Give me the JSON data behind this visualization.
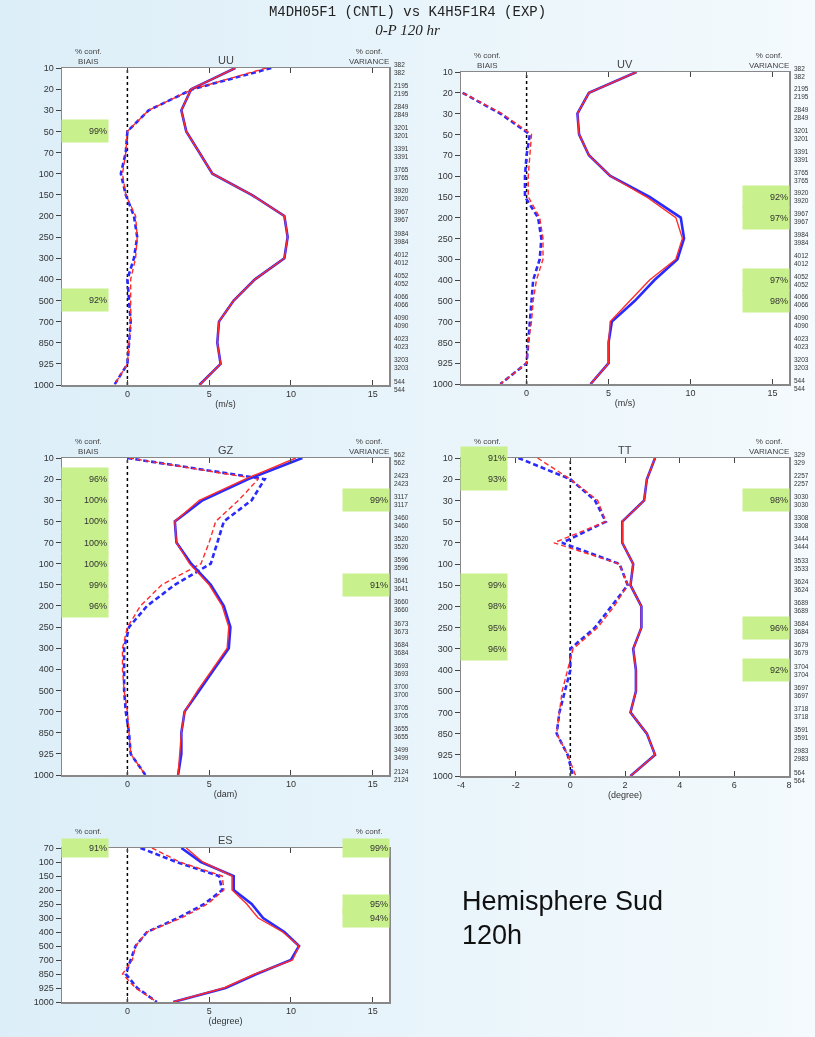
{
  "chart_data": [
    {
      "type": "other",
      "title": "M4DH05F1 (CNTL) vs K4H5F1R4 (EXP)",
      "subtitle": "0-P 120 hr",
      "annotations": [
        "Hemisphere Sud\n120h"
      ]
    },
    {
      "type": "line",
      "orientation": "horizontal",
      "title": "UU",
      "xlabel": "(m/s)",
      "categories": [
        "10",
        "20",
        "30",
        "50",
        "70",
        "100",
        "150",
        "200",
        "250",
        "300",
        "400",
        "500",
        "700",
        "850",
        "925",
        "1000"
      ],
      "y2_categories": [
        "382\n382",
        "2195\n2195",
        "2849\n2849",
        "3201\n3201",
        "3391\n3391",
        "3765\n3765",
        "3920\n3920",
        "3967\n3967",
        "3984\n3984",
        "4012\n4012",
        "4052\n4052",
        "4066\n4066",
        "4090\n4090",
        "4023\n4023",
        "3203\n3203",
        "544\n544"
      ],
      "xlim": [
        -4,
        16
      ],
      "xticks": [
        0,
        5,
        10,
        15
      ],
      "grid": false,
      "series": [
        {
          "color": "#2a2aff",
          "line_style": "dashed",
          "values": [
            8.8,
            4.0,
            1.3,
            0.0,
            -0.1,
            -0.4,
            -0.1,
            0.4,
            0.6,
            0.4,
            0.0,
            0.1,
            0.2,
            0.1,
            0.0,
            -0.8
          ]
        },
        {
          "color": "#ff2a2a",
          "line_style": "dashed",
          "values": [
            8.5,
            4.0,
            1.3,
            0.0,
            -0.1,
            -0.3,
            -0.1,
            0.5,
            0.6,
            0.5,
            0.2,
            0.2,
            0.2,
            0.1,
            0.0,
            -0.8
          ]
        },
        {
          "color": "#2a2aff",
          "line_style": "solid",
          "values": [
            6.6,
            3.9,
            3.3,
            3.6,
            4.4,
            5.2,
            7.6,
            9.6,
            9.8,
            9.6,
            7.8,
            6.5,
            5.6,
            5.5,
            5.7,
            4.4
          ]
        },
        {
          "color": "#ff2a2a",
          "line_style": "solid",
          "values": [
            6.6,
            3.9,
            3.3,
            3.6,
            4.4,
            5.2,
            7.6,
            9.6,
            9.8,
            9.6,
            7.8,
            6.5,
            5.6,
            5.5,
            5.7,
            4.4
          ]
        }
      ],
      "ref_lines": [
        {
          "axis": "x",
          "value": 0,
          "color": "#000000",
          "line_style": "dotted"
        }
      ],
      "annotations": [
        "% conf.\nBIAIS",
        "% conf.\nVARIANCE",
        "99%",
        "92%"
      ]
    },
    {
      "type": "line",
      "orientation": "horizontal",
      "title": "UV",
      "xlabel": "(m/s)",
      "categories": [
        "10",
        "20",
        "30",
        "50",
        "70",
        "100",
        "150",
        "200",
        "250",
        "300",
        "400",
        "500",
        "700",
        "850",
        "925",
        "1000"
      ],
      "y2_categories": [
        "382\n382",
        "2195\n2195",
        "2849\n2849",
        "3201\n3201",
        "3391\n3391",
        "3765\n3765",
        "3920\n3920",
        "3967\n3967",
        "3984\n3984",
        "4012\n4012",
        "4052\n4052",
        "4066\n4066",
        "4090\n4090",
        "4023\n4023",
        "3203\n3203",
        "544\n544"
      ],
      "xlim": [
        -4,
        16
      ],
      "xticks": [
        0,
        5,
        10,
        15
      ],
      "grid": false,
      "series": [
        {
          "color": "#2a2aff",
          "line_style": "dashed",
          "values": [
            null,
            -3.9,
            -1.6,
            0.2,
            0.0,
            -0.1,
            -0.1,
            0.7,
            0.9,
            0.8,
            0.4,
            0.3,
            0.2,
            0.1,
            0.0,
            -1.6
          ]
        },
        {
          "color": "#ff2a2a",
          "line_style": "dashed",
          "values": [
            null,
            -3.9,
            -1.5,
            0.3,
            0.2,
            0.1,
            0.1,
            0.8,
            1.0,
            1.0,
            0.6,
            0.4,
            0.3,
            0.1,
            0.0,
            -1.6
          ]
        },
        {
          "color": "#2a2aff",
          "line_style": "solid",
          "values": [
            6.7,
            3.8,
            3.1,
            3.2,
            3.8,
            5.1,
            7.5,
            9.4,
            9.6,
            9.2,
            7.8,
            6.6,
            5.2,
            5.0,
            5.0,
            3.9
          ]
        },
        {
          "color": "#ff2a2a",
          "line_style": "solid",
          "values": [
            6.7,
            3.8,
            3.1,
            3.2,
            3.8,
            5.1,
            7.3,
            9.1,
            9.5,
            9.1,
            7.5,
            6.3,
            5.1,
            5.0,
            5.0,
            3.9
          ]
        }
      ],
      "ref_lines": [
        {
          "axis": "x",
          "value": 0,
          "color": "#000000",
          "line_style": "dotted"
        }
      ],
      "annotations": [
        "% conf.\nBIAIS",
        "% conf.\nVARIANCE",
        "92%",
        "97%",
        "97%",
        "98%"
      ]
    },
    {
      "type": "line",
      "orientation": "horizontal",
      "title": "GZ",
      "xlabel": "(dam)",
      "categories": [
        "10",
        "20",
        "30",
        "50",
        "70",
        "100",
        "150",
        "200",
        "250",
        "300",
        "400",
        "500",
        "700",
        "850",
        "925",
        "1000"
      ],
      "y2_categories": [
        "562\n562",
        "2423\n2423",
        "3117\n3117",
        "3460\n3460",
        "3520\n3520",
        "3596\n3596",
        "3641\n3641",
        "3660\n3660",
        "3673\n3673",
        "3684\n3684",
        "3693\n3693",
        "3700\n3700",
        "3705\n3705",
        "3655\n3655",
        "3499\n3499",
        "2124\n2124"
      ],
      "xlim": [
        -4,
        16
      ],
      "xticks": [
        0,
        5,
        10,
        15
      ],
      "grid": false,
      "series": [
        {
          "color": "#2a2aff",
          "line_style": "dashed",
          "values": [
            0.0,
            8.4,
            7.6,
            5.9,
            5.5,
            5.1,
            2.9,
            1.2,
            0.1,
            -0.2,
            -0.2,
            -0.2,
            -0.1,
            0.1,
            0.2,
            1.1
          ]
        },
        {
          "color": "#ff2a2a",
          "line_style": "dashed",
          "values": [
            0.1,
            8.0,
            6.8,
            5.4,
            5.0,
            4.5,
            2.1,
            0.8,
            0.0,
            -0.3,
            -0.3,
            -0.2,
            0.0,
            0.1,
            0.2,
            1.1
          ]
        },
        {
          "color": "#2a2aff",
          "line_style": "solid",
          "values": [
            10.7,
            7.4,
            4.6,
            2.9,
            3.0,
            3.9,
            5.1,
            5.9,
            6.3,
            6.2,
            5.3,
            4.4,
            3.5,
            3.3,
            3.3,
            3.1
          ]
        },
        {
          "color": "#ff2a2a",
          "line_style": "solid",
          "values": [
            10.3,
            7.2,
            4.4,
            2.9,
            3.0,
            3.8,
            5.0,
            5.8,
            6.2,
            6.1,
            5.2,
            4.3,
            3.5,
            3.3,
            3.2,
            3.1
          ]
        }
      ],
      "ref_lines": [
        {
          "axis": "x",
          "value": 0,
          "color": "#000000",
          "line_style": "dotted"
        }
      ],
      "annotations": [
        "% conf.\nBIAIS",
        "% conf.\nVARIANCE",
        "96%",
        "100%",
        "100%",
        "100%",
        "100%",
        "99%",
        "96%",
        "99%",
        "91%"
      ]
    },
    {
      "type": "line",
      "orientation": "horizontal",
      "title": "TT",
      "xlabel": "(degree)",
      "categories": [
        "10",
        "20",
        "30",
        "50",
        "70",
        "100",
        "150",
        "200",
        "250",
        "300",
        "400",
        "500",
        "700",
        "850",
        "925",
        "1000"
      ],
      "y2_categories": [
        "329\n329",
        "2257\n2257",
        "3030\n3030",
        "3308\n3308",
        "3444\n3444",
        "3533\n3533",
        "3624\n3624",
        "3689\n3689",
        "3684\n3684",
        "3679\n3679",
        "3704\n3704",
        "3697\n3697",
        "3718\n3718",
        "3591\n3591",
        "2983\n2983",
        "564\n564"
      ],
      "xlim": [
        -4,
        8
      ],
      "xticks": [
        -4,
        -2,
        0,
        2,
        4,
        6,
        8
      ],
      "grid": false,
      "series": [
        {
          "color": "#2a2aff",
          "line_style": "dashed",
          "values": [
            -1.9,
            0.0,
            0.9,
            1.3,
            -0.3,
            1.8,
            2.1,
            1.5,
            0.9,
            0.0,
            0.0,
            -0.2,
            -0.4,
            -0.5,
            -0.1,
            0.1
          ]
        },
        {
          "color": "#ff2a2a",
          "line_style": "dashed",
          "values": [
            -1.2,
            0.0,
            1.0,
            1.3,
            -0.6,
            1.8,
            2.1,
            1.6,
            1.0,
            0.1,
            -0.1,
            -0.3,
            -0.4,
            -0.5,
            -0.1,
            0.2
          ]
        },
        {
          "color": "#2a2aff",
          "line_style": "solid",
          "values": [
            3.1,
            2.8,
            2.7,
            1.9,
            1.9,
            2.3,
            2.2,
            2.6,
            2.6,
            2.3,
            2.4,
            2.4,
            2.2,
            2.8,
            3.1,
            2.2
          ]
        },
        {
          "color": "#ff2a2a",
          "line_style": "solid",
          "values": [
            3.1,
            2.8,
            2.7,
            1.9,
            1.9,
            2.3,
            2.2,
            2.6,
            2.6,
            2.3,
            2.4,
            2.4,
            2.2,
            2.8,
            3.1,
            2.2
          ]
        }
      ],
      "ref_lines": [
        {
          "axis": "x",
          "value": 0,
          "color": "#000000",
          "line_style": "dotted"
        }
      ],
      "annotations": [
        "% conf.\nBIAIS",
        "% conf.\nVARIANCE",
        "91%",
        "93%",
        "99%",
        "98%",
        "95%",
        "96%",
        "98%",
        "96%",
        "92%"
      ]
    },
    {
      "type": "line",
      "orientation": "horizontal",
      "title": "ES",
      "xlabel": "(degree)",
      "categories": [
        "70",
        "100",
        "150",
        "200",
        "250",
        "300",
        "400",
        "500",
        "700",
        "850",
        "925",
        "1000"
      ],
      "xlim": [
        -4,
        16
      ],
      "xticks": [
        0,
        5,
        10,
        15
      ],
      "grid": false,
      "series": [
        {
          "color": "#2a2aff",
          "line_style": "dashed",
          "values": [
            0.8,
            3.0,
            5.6,
            5.8,
            4.7,
            3.1,
            1.2,
            0.5,
            0.2,
            -0.1,
            0.6,
            1.8
          ]
        },
        {
          "color": "#ff2a2a",
          "line_style": "dashed",
          "values": [
            1.5,
            3.2,
            5.8,
            5.9,
            4.9,
            3.3,
            1.2,
            0.5,
            0.3,
            -0.3,
            0.5,
            1.8
          ]
        },
        {
          "color": "#2a2aff",
          "line_style": "solid",
          "values": [
            3.3,
            4.5,
            6.5,
            6.5,
            7.6,
            8.3,
            9.6,
            10.5,
            10.0,
            7.9,
            6.0,
            2.8
          ]
        },
        {
          "color": "#ff2a2a",
          "line_style": "solid",
          "values": [
            3.6,
            4.6,
            6.4,
            6.4,
            7.3,
            8.0,
            9.5,
            10.5,
            10.1,
            7.8,
            5.9,
            2.8
          ]
        }
      ],
      "ref_lines": [
        {
          "axis": "x",
          "value": 0,
          "color": "#000000",
          "line_style": "dotted"
        }
      ],
      "annotations": [
        "% conf.\nBIAIS",
        "% conf.\nVARIANCE",
        "91%",
        "99%",
        "95%",
        "94%"
      ]
    }
  ]
}
